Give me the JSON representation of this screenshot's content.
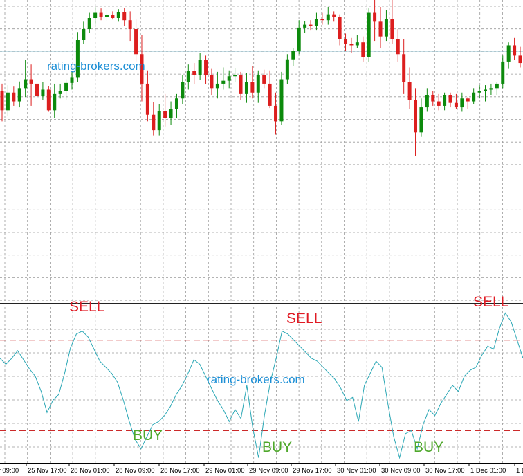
{
  "watermarks": [
    "rating-brokers.com",
    "rating-brokers.com"
  ],
  "signals": {
    "sell": [
      "SELL",
      "SELL",
      "SELL"
    ],
    "buy": [
      "BUY",
      "BUY",
      "BUY"
    ]
  },
  "colors": {
    "bull": "#0c8a0c",
    "bear": "#dc1e1e",
    "grid": "#9a9a9a",
    "oscillator": "#2aa7b5",
    "level": "#cc2a2a",
    "sell_text": "#e01b24",
    "buy_text": "#4fa82c",
    "watermark": "#1c8fd6",
    "separator": "#222222",
    "price_line": "#8fbfcf"
  },
  "x_axis": {
    "tick_labels": [
      "v 09:00",
      "25 Nov 17:00",
      "28 Nov 01:00",
      "28 Nov 09:00",
      "28 Nov 17:00",
      "29 Nov 01:00",
      "29 Nov 09:00",
      "29 Nov 17:00",
      "30 Nov 01:00",
      "30 Nov 09:00",
      "30 Nov 17:00",
      "1 Dec 01:00",
      "1 D"
    ]
  },
  "chart_data": [
    {
      "type": "candlestick",
      "title": "",
      "grid": true,
      "ylim": [
        0,
        300
      ],
      "candles": [
        {
          "o": 186,
          "h": 196,
          "l": 145,
          "c": 160
        },
        {
          "o": 160,
          "h": 194,
          "l": 152,
          "c": 184
        },
        {
          "o": 184,
          "h": 192,
          "l": 166,
          "c": 172
        },
        {
          "o": 172,
          "h": 199,
          "l": 164,
          "c": 190
        },
        {
          "o": 190,
          "h": 228,
          "l": 178,
          "c": 202
        },
        {
          "o": 202,
          "h": 222,
          "l": 166,
          "c": 196
        },
        {
          "o": 196,
          "h": 208,
          "l": 172,
          "c": 179
        },
        {
          "o": 179,
          "h": 198,
          "l": 174,
          "c": 188
        },
        {
          "o": 188,
          "h": 193,
          "l": 158,
          "c": 160
        },
        {
          "o": 160,
          "h": 196,
          "l": 150,
          "c": 182
        },
        {
          "o": 182,
          "h": 196,
          "l": 176,
          "c": 186
        },
        {
          "o": 186,
          "h": 202,
          "l": 174,
          "c": 197
        },
        {
          "o": 197,
          "h": 212,
          "l": 188,
          "c": 204
        },
        {
          "o": 204,
          "h": 266,
          "l": 198,
          "c": 255
        },
        {
          "o": 255,
          "h": 280,
          "l": 250,
          "c": 270
        },
        {
          "o": 270,
          "h": 292,
          "l": 265,
          "c": 285
        },
        {
          "o": 285,
          "h": 300,
          "l": 276,
          "c": 292
        },
        {
          "o": 292,
          "h": 298,
          "l": 282,
          "c": 286
        },
        {
          "o": 286,
          "h": 297,
          "l": 280,
          "c": 289
        },
        {
          "o": 289,
          "h": 294,
          "l": 283,
          "c": 285
        },
        {
          "o": 285,
          "h": 297,
          "l": 280,
          "c": 293
        },
        {
          "o": 293,
          "h": 299,
          "l": 274,
          "c": 282
        },
        {
          "o": 282,
          "h": 294,
          "l": 254,
          "c": 270
        },
        {
          "o": 270,
          "h": 284,
          "l": 226,
          "c": 236
        },
        {
          "o": 236,
          "h": 262,
          "l": 172,
          "c": 196
        },
        {
          "o": 196,
          "h": 214,
          "l": 145,
          "c": 154
        },
        {
          "o": 154,
          "h": 171,
          "l": 126,
          "c": 133
        },
        {
          "o": 133,
          "h": 168,
          "l": 126,
          "c": 159
        },
        {
          "o": 159,
          "h": 182,
          "l": 138,
          "c": 150
        },
        {
          "o": 150,
          "h": 172,
          "l": 140,
          "c": 162
        },
        {
          "o": 162,
          "h": 182,
          "l": 150,
          "c": 176
        },
        {
          "o": 176,
          "h": 208,
          "l": 168,
          "c": 198
        },
        {
          "o": 198,
          "h": 222,
          "l": 188,
          "c": 213
        },
        {
          "o": 213,
          "h": 224,
          "l": 195,
          "c": 208
        },
        {
          "o": 208,
          "h": 238,
          "l": 201,
          "c": 228
        },
        {
          "o": 228,
          "h": 234,
          "l": 195,
          "c": 208
        },
        {
          "o": 208,
          "h": 216,
          "l": 180,
          "c": 190
        },
        {
          "o": 190,
          "h": 212,
          "l": 176,
          "c": 196
        },
        {
          "o": 196,
          "h": 218,
          "l": 188,
          "c": 200
        },
        {
          "o": 200,
          "h": 214,
          "l": 190,
          "c": 206
        },
        {
          "o": 206,
          "h": 217,
          "l": 198,
          "c": 208
        },
        {
          "o": 208,
          "h": 212,
          "l": 174,
          "c": 182
        },
        {
          "o": 182,
          "h": 210,
          "l": 170,
          "c": 198
        },
        {
          "o": 198,
          "h": 220,
          "l": 176,
          "c": 184
        },
        {
          "o": 184,
          "h": 214,
          "l": 170,
          "c": 208
        },
        {
          "o": 208,
          "h": 215,
          "l": 190,
          "c": 196
        },
        {
          "o": 196,
          "h": 214,
          "l": 163,
          "c": 166
        },
        {
          "o": 166,
          "h": 184,
          "l": 127,
          "c": 145
        },
        {
          "o": 145,
          "h": 212,
          "l": 140,
          "c": 202
        },
        {
          "o": 202,
          "h": 236,
          "l": 195,
          "c": 229
        },
        {
          "o": 229,
          "h": 244,
          "l": 220,
          "c": 240
        },
        {
          "o": 240,
          "h": 282,
          "l": 236,
          "c": 272
        },
        {
          "o": 272,
          "h": 281,
          "l": 265,
          "c": 276
        },
        {
          "o": 276,
          "h": 282,
          "l": 268,
          "c": 274
        },
        {
          "o": 274,
          "h": 292,
          "l": 268,
          "c": 284
        },
        {
          "o": 284,
          "h": 292,
          "l": 276,
          "c": 282
        },
        {
          "o": 282,
          "h": 300,
          "l": 276,
          "c": 290
        },
        {
          "o": 290,
          "h": 294,
          "l": 280,
          "c": 286
        },
        {
          "o": 286,
          "h": 290,
          "l": 248,
          "c": 256
        },
        {
          "o": 256,
          "h": 264,
          "l": 240,
          "c": 250
        },
        {
          "o": 250,
          "h": 258,
          "l": 238,
          "c": 248
        },
        {
          "o": 248,
          "h": 262,
          "l": 244,
          "c": 252
        },
        {
          "o": 252,
          "h": 260,
          "l": 226,
          "c": 232
        },
        {
          "o": 232,
          "h": 298,
          "l": 226,
          "c": 292
        },
        {
          "o": 292,
          "h": 318,
          "l": 254,
          "c": 280
        },
        {
          "o": 280,
          "h": 300,
          "l": 244,
          "c": 260
        },
        {
          "o": 260,
          "h": 296,
          "l": 254,
          "c": 284
        },
        {
          "o": 284,
          "h": 310,
          "l": 250,
          "c": 256
        },
        {
          "o": 256,
          "h": 270,
          "l": 226,
          "c": 236
        },
        {
          "o": 236,
          "h": 256,
          "l": 182,
          "c": 198
        },
        {
          "o": 198,
          "h": 218,
          "l": 162,
          "c": 174
        },
        {
          "o": 174,
          "h": 190,
          "l": 98,
          "c": 130
        },
        {
          "o": 130,
          "h": 176,
          "l": 124,
          "c": 164
        },
        {
          "o": 164,
          "h": 190,
          "l": 158,
          "c": 180
        },
        {
          "o": 180,
          "h": 186,
          "l": 166,
          "c": 172
        },
        {
          "o": 172,
          "h": 182,
          "l": 160,
          "c": 166
        },
        {
          "o": 166,
          "h": 184,
          "l": 160,
          "c": 180
        },
        {
          "o": 180,
          "h": 184,
          "l": 164,
          "c": 170
        },
        {
          "o": 170,
          "h": 182,
          "l": 162,
          "c": 164
        },
        {
          "o": 164,
          "h": 184,
          "l": 158,
          "c": 176
        },
        {
          "o": 176,
          "h": 178,
          "l": 162,
          "c": 172
        },
        {
          "o": 172,
          "h": 190,
          "l": 168,
          "c": 184
        },
        {
          "o": 184,
          "h": 194,
          "l": 176,
          "c": 186
        },
        {
          "o": 186,
          "h": 194,
          "l": 172,
          "c": 188
        },
        {
          "o": 188,
          "h": 196,
          "l": 180,
          "c": 190
        },
        {
          "o": 190,
          "h": 198,
          "l": 180,
          "c": 196
        },
        {
          "o": 196,
          "h": 234,
          "l": 190,
          "c": 226
        },
        {
          "o": 226,
          "h": 252,
          "l": 216,
          "c": 248
        },
        {
          "o": 248,
          "h": 258,
          "l": 228,
          "c": 234
        },
        {
          "o": 234,
          "h": 246,
          "l": 218,
          "c": 224
        }
      ]
    },
    {
      "type": "line",
      "title": "",
      "grid": true,
      "ylim": [
        0,
        100
      ],
      "levels": [
        80,
        20
      ],
      "values": [
        68,
        64,
        68,
        73,
        67,
        61,
        56,
        46,
        32,
        40,
        44,
        58,
        75,
        84,
        86,
        82,
        74,
        66,
        62,
        58,
        52,
        40,
        26,
        14,
        8,
        16,
        24,
        26,
        30,
        36,
        44,
        50,
        58,
        67,
        64,
        56,
        48,
        40,
        34,
        26,
        34,
        28,
        50,
        22,
        2,
        30,
        52,
        68,
        86,
        84,
        80,
        76,
        72,
        68,
        66,
        62,
        58,
        54,
        48,
        40,
        42,
        26,
        50,
        58,
        66,
        62,
        38,
        16,
        2,
        18,
        20,
        8,
        24,
        34,
        30,
        38,
        44,
        50,
        46,
        56,
        60,
        62,
        70,
        76,
        74,
        88,
        98,
        92,
        80,
        68
      ]
    }
  ]
}
